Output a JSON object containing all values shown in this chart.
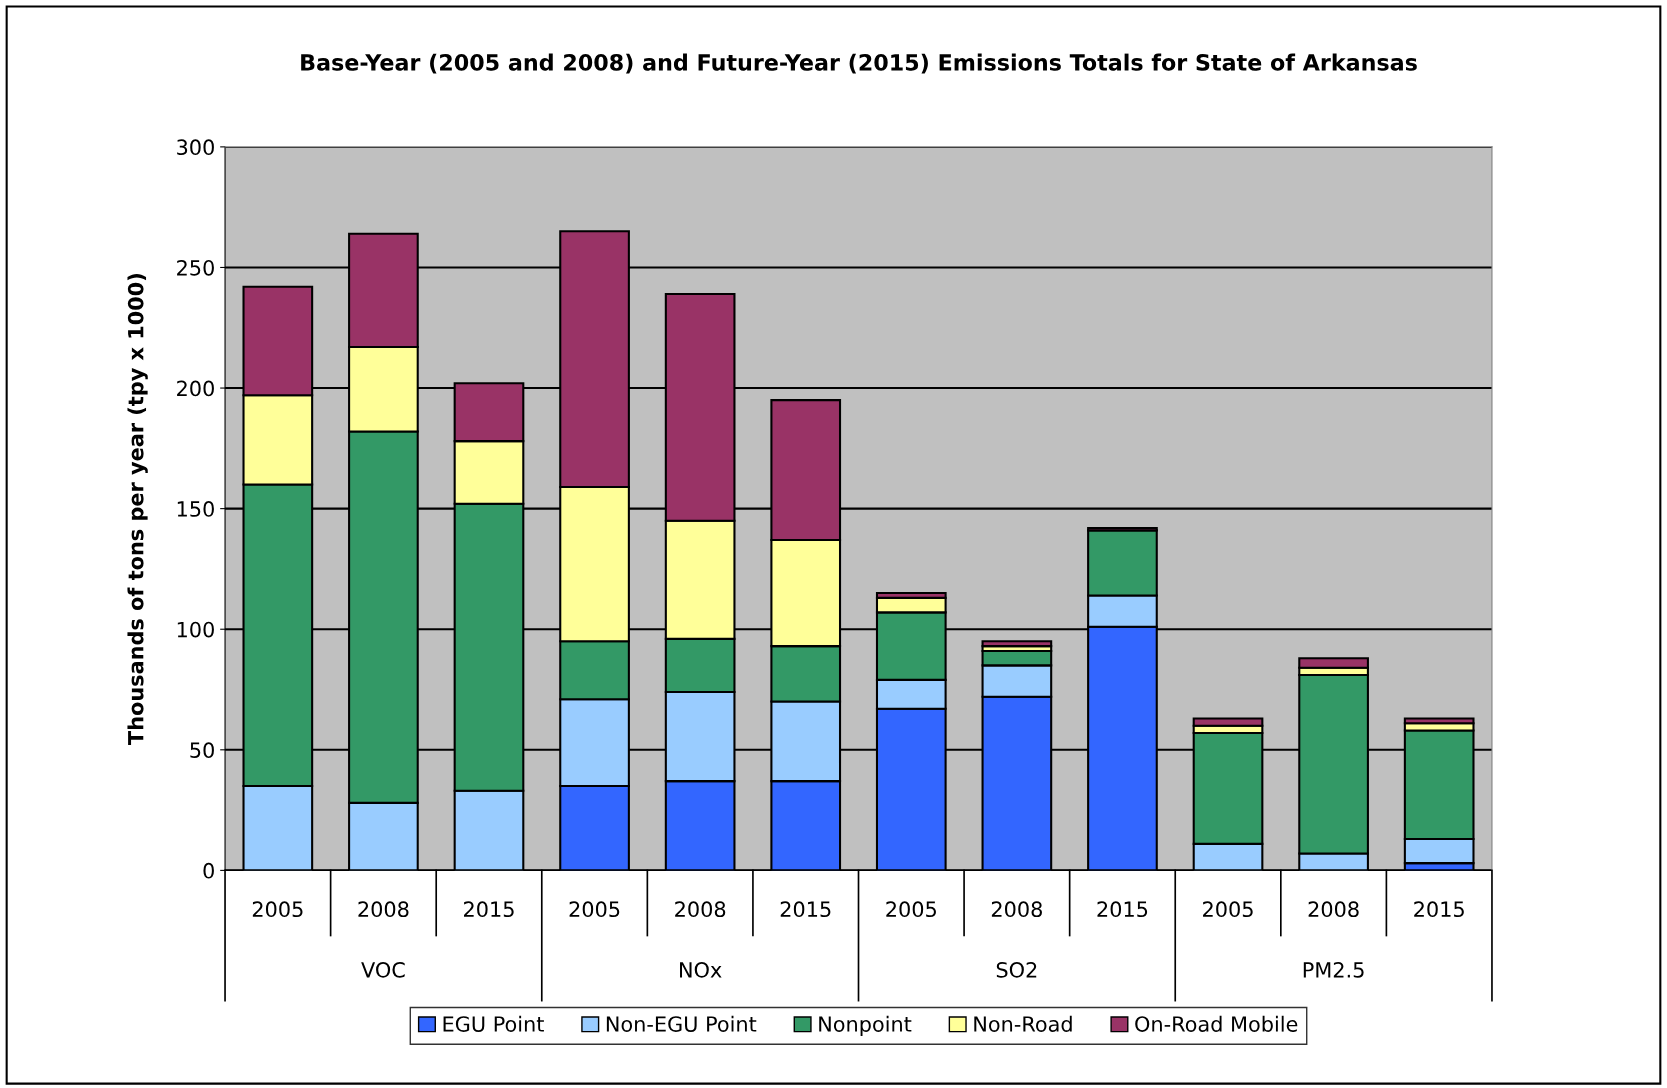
{
  "chart_data": {
    "type": "bar",
    "stacked": true,
    "title": "Base-Year (2005 and 2008) and Future-Year (2015) Emissions Totals for State of Arkansas",
    "ylabel": "Thousands of tons per year (tpy x 1000)",
    "categories": [
      "2005",
      "2008",
      "2015",
      "2005",
      "2008",
      "2015",
      "2005",
      "2008",
      "2015",
      "2005",
      "2008",
      "2015"
    ],
    "annotations": [
      "VOC",
      "NOx",
      "SO2",
      "PM2.5"
    ],
    "series": [
      {
        "name": "EGU Point",
        "color": "#3366ff",
        "values": [
          0,
          0,
          0,
          35,
          37,
          37,
          67,
          72,
          101,
          null,
          null,
          3
        ]
      },
      {
        "name": "Non-EGU Point",
        "color": "#99ccff",
        "values": [
          35,
          28,
          33,
          36,
          37,
          33,
          12,
          13,
          13,
          11,
          7,
          10
        ]
      },
      {
        "name": "Nonpoint",
        "color": "#339966",
        "values": [
          125,
          154,
          119,
          24,
          22,
          23,
          28,
          6,
          27,
          46,
          74,
          45
        ]
      },
      {
        "name": "Non-Road",
        "color": "#ffff99",
        "values": [
          37,
          35,
          26,
          64,
          49,
          44,
          6,
          2,
          null,
          3,
          3,
          3
        ]
      },
      {
        "name": "On-Road Mobile",
        "color": "#993366",
        "values": [
          45,
          47,
          24,
          106,
          94,
          58,
          2,
          2,
          1,
          3,
          4,
          2
        ]
      }
    ],
    "ylim": [
      0,
      300
    ],
    "yticks": [
      0,
      50,
      100,
      150,
      200,
      250,
      300
    ],
    "grid": "y",
    "legend": "bottom"
  }
}
